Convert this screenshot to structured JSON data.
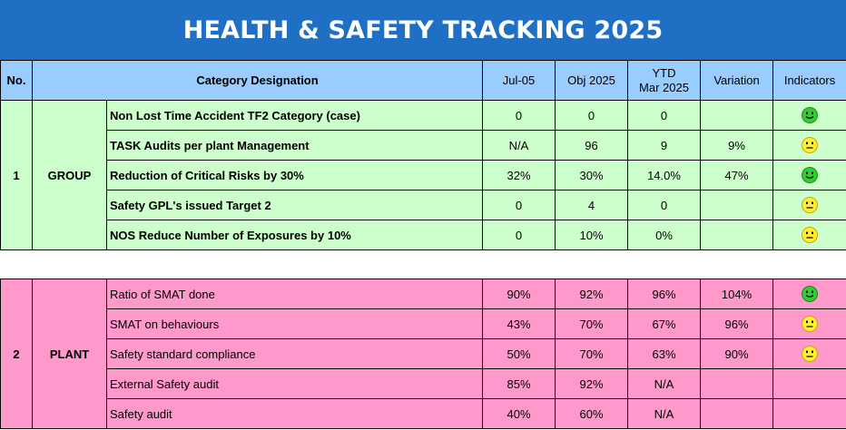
{
  "title": "HEALTH & SAFETY TRACKING 2025",
  "headers": {
    "no": "No.",
    "category": "Category Designation",
    "jul": "Jul-05",
    "obj": "Obj 2025",
    "ytd_line1": "YTD",
    "ytd_line2": "Mar 2025",
    "variation": "Variation",
    "indicators": "Indicators"
  },
  "colors": {
    "title_bg": "#1f6fc5",
    "header_bg": "#99ccff",
    "group_bg": "#ccffcc",
    "plant_bg": "#ff99cc",
    "green_face": "#33cc33",
    "yellow_face": "#ffee33"
  },
  "groups": [
    {
      "no": "1",
      "name": "GROUP",
      "rows": [
        {
          "desc": "Non Lost Time Accident TF2 Category (case)",
          "jul": "0",
          "obj": "0",
          "ytd": "0",
          "variation": "",
          "indicator": "green-smiley-icon"
        },
        {
          "desc": "TASK Audits per plant Management",
          "jul": "N/A",
          "obj": "96",
          "ytd": "9",
          "variation": "9%",
          "indicator": "yellow-neutral-icon"
        },
        {
          "desc": "Reduction of Critical Risks by 30%",
          "jul": "32%",
          "obj": "30%",
          "ytd": "14.0%",
          "variation": "47%",
          "indicator": "green-smiley-icon"
        },
        {
          "desc": "Safety GPL's issued Target 2",
          "jul": "0",
          "obj": "4",
          "ytd": "0",
          "variation": "",
          "indicator": "yellow-neutral-icon"
        },
        {
          "desc": "NOS Reduce Number of Exposures by 10%",
          "jul": "0",
          "obj": "10%",
          "ytd": "0%",
          "variation": "",
          "indicator": "yellow-neutral-icon"
        }
      ]
    },
    {
      "no": "2",
      "name": "PLANT",
      "rows": [
        {
          "desc": "Ratio of SMAT done",
          "jul": "90%",
          "obj": "92%",
          "ytd": "96%",
          "variation": "104%",
          "indicator": "green-smiley-icon"
        },
        {
          "desc": "SMAT on behaviours",
          "jul": "43%",
          "obj": "70%",
          "ytd": "67%",
          "variation": "96%",
          "indicator": "yellow-neutral-icon"
        },
        {
          "desc": "Safety standard compliance",
          "jul": "50%",
          "obj": "70%",
          "ytd": "63%",
          "variation": "90%",
          "indicator": "yellow-neutral-icon"
        },
        {
          "desc": "External Safety audit",
          "jul": "85%",
          "obj": "92%",
          "ytd": "N/A",
          "variation": "",
          "indicator": ""
        },
        {
          "desc": "Safety audit",
          "jul": "40%",
          "obj": "60%",
          "ytd": "N/A",
          "variation": "",
          "indicator": ""
        }
      ]
    }
  ]
}
